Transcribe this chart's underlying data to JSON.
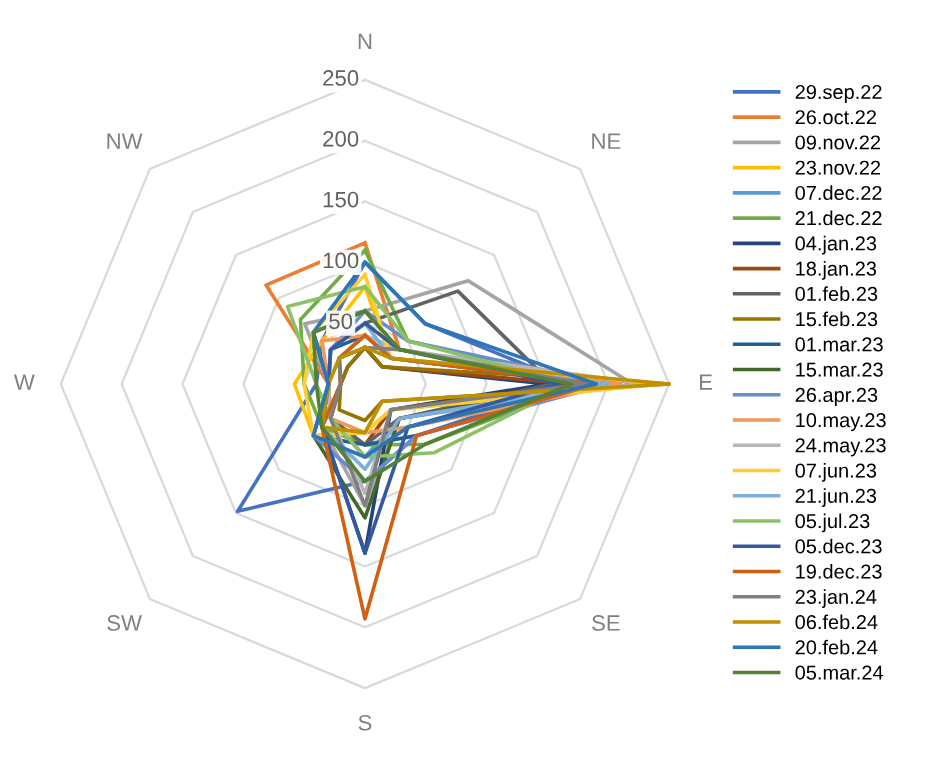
{
  "chart_data": {
    "type": "radar",
    "categories": [
      "N",
      "NE",
      "E",
      "SE",
      "S",
      "SW",
      "W",
      "NW"
    ],
    "ylim": [
      0,
      250
    ],
    "yticks": [
      50,
      100,
      150,
      200,
      250
    ],
    "grid": true,
    "legend": "right",
    "marker": "none",
    "line_style": "solid",
    "series": [
      {
        "name": "29.sep.22",
        "color": "#4472c4",
        "values": [
          100,
          70,
          170,
          60,
          80,
          148,
          40,
          50
        ]
      },
      {
        "name": "26.oct.22",
        "color": "#ed7d31",
        "values": [
          116,
          40,
          200,
          50,
          60,
          40,
          30,
          115
        ]
      },
      {
        "name": "09.nov.22",
        "color": "#a5a5a5",
        "values": [
          60,
          120,
          220,
          40,
          100,
          50,
          30,
          70
        ]
      },
      {
        "name": "23.nov.22",
        "color": "#ffc000",
        "values": [
          80,
          30,
          240,
          30,
          40,
          60,
          58,
          50
        ]
      },
      {
        "name": "07.dec.22",
        "color": "#5b9bd5",
        "values": [
          40,
          30,
          200,
          40,
          60,
          40,
          20,
          30
        ]
      },
      {
        "name": "21.dec.22",
        "color": "#70ad47",
        "values": [
          110,
          50,
          180,
          70,
          50,
          50,
          50,
          75
        ]
      },
      {
        "name": "04.jan.23",
        "color": "#264478",
        "values": [
          30,
          20,
          150,
          30,
          139,
          50,
          20,
          20
        ]
      },
      {
        "name": "18.jan.23",
        "color": "#9e480e",
        "values": [
          30,
          20,
          170,
          30,
          50,
          40,
          20,
          30
        ]
      },
      {
        "name": "01.feb.23",
        "color": "#636363",
        "values": [
          50,
          108,
          154,
          40,
          50,
          40,
          30,
          40
        ]
      },
      {
        "name": "15.feb.23",
        "color": "#997300",
        "values": [
          30,
          20,
          250,
          20,
          30,
          30,
          20,
          20
        ]
      },
      {
        "name": "01.mar.23",
        "color": "#255e91",
        "values": [
          40,
          30,
          190,
          60,
          50,
          60,
          30,
          40
        ]
      },
      {
        "name": "15.mar.23",
        "color": "#43682b",
        "values": [
          60,
          40,
          180,
          40,
          110,
          60,
          30,
          60
        ]
      },
      {
        "name": "26.apr.23",
        "color": "#698ed0",
        "values": [
          60,
          50,
          200,
          60,
          80,
          60,
          30,
          40
        ]
      },
      {
        "name": "10.may.23",
        "color": "#f1975a",
        "values": [
          40,
          30,
          210,
          50,
          40,
          40,
          30,
          50
        ]
      },
      {
        "name": "24.may.23",
        "color": "#b7b7b7",
        "values": [
          40,
          40,
          230,
          30,
          90,
          40,
          30,
          30
        ]
      },
      {
        "name": "07.jun.23",
        "color": "#ffcd33",
        "values": [
          90,
          30,
          245,
          30,
          40,
          60,
          50,
          60
        ]
      },
      {
        "name": "21.jun.23",
        "color": "#7cafdd",
        "values": [
          50,
          30,
          200,
          40,
          70,
          50,
          30,
          40
        ]
      },
      {
        "name": "05.jul.23",
        "color": "#8cc168",
        "values": [
          80,
          50,
          170,
          80,
          60,
          40,
          40,
          90
        ]
      },
      {
        "name": "05.dec.23",
        "color": "#335aa1",
        "values": [
          50,
          40,
          160,
          50,
          139,
          50,
          30,
          40
        ]
      },
      {
        "name": "19.dec.23",
        "color": "#d26012",
        "values": [
          40,
          30,
          190,
          60,
          193,
          50,
          20,
          30
        ]
      },
      {
        "name": "23.jan.24",
        "color": "#7f7f7f",
        "values": [
          30,
          40,
          180,
          30,
          100,
          40,
          20,
          30
        ]
      },
      {
        "name": "06.feb.24",
        "color": "#bf9000",
        "values": [
          30,
          30,
          250,
          20,
          40,
          50,
          30,
          30
        ]
      },
      {
        "name": "20.feb.24",
        "color": "#2e75b6",
        "values": [
          100,
          70,
          190,
          50,
          60,
          60,
          30,
          60
        ]
      },
      {
        "name": "05.mar.24",
        "color": "#548235",
        "values": [
          60,
          40,
          170,
          70,
          80,
          50,
          40,
          60
        ]
      }
    ]
  }
}
